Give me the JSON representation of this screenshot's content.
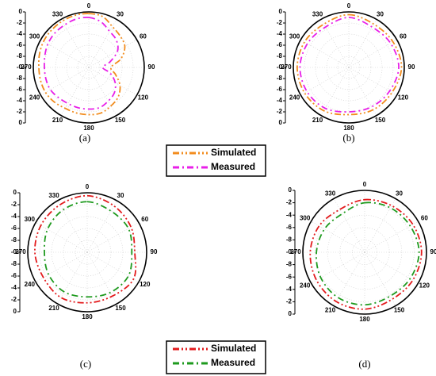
{
  "chart_data": [
    {
      "type": "polar",
      "caption": "(a)",
      "rlim": [
        -10,
        0
      ],
      "rticks": [
        0,
        -2,
        -4,
        -6,
        -8,
        {
          "value": -10,
          "label": "-0"
        }
      ],
      "angle_ticks": [
        0,
        30,
        60,
        90,
        120,
        150,
        180,
        210,
        240,
        270,
        300,
        330
      ],
      "x": [
        0,
        15,
        30,
        45,
        60,
        75,
        90,
        105,
        120,
        135,
        150,
        165,
        180,
        195,
        210,
        225,
        240,
        255,
        270,
        285,
        300,
        315,
        330,
        345
      ],
      "series": [
        {
          "name": "Simulated",
          "color": "#f28c1e",
          "values": [
            -0.3,
            -0.5,
            -1.5,
            -2,
            -2.5,
            -4,
            -6,
            -5,
            -3.5,
            -2.5,
            -2,
            -1.5,
            -1.5,
            -1.5,
            -1.5,
            -1.2,
            -1,
            -1,
            -1,
            -0.8,
            -0.6,
            -0.5,
            -0.4,
            -0.3
          ]
        },
        {
          "name": "Measured",
          "color": "#e81fe8",
          "values": [
            -1,
            -1.5,
            -2.5,
            -3,
            -4,
            -6,
            -7.5,
            -6,
            -4.5,
            -3.5,
            -3,
            -2.5,
            -2.5,
            -2.5,
            -2.5,
            -2.3,
            -2,
            -2,
            -2,
            -1.8,
            -1.5,
            -1.3,
            -1.2,
            -1
          ]
        }
      ]
    },
    {
      "type": "polar",
      "caption": "(b)",
      "rlim": [
        -10,
        0
      ],
      "rticks": [
        0,
        -2,
        -4,
        -6,
        -8,
        {
          "value": -10,
          "label": "-0"
        }
      ],
      "angle_ticks": [
        0,
        30,
        60,
        90,
        120,
        150,
        180,
        210,
        240,
        270,
        300,
        330
      ],
      "x": [
        0,
        30,
        60,
        90,
        120,
        150,
        180,
        210,
        240,
        270,
        300,
        330
      ],
      "series": [
        {
          "name": "Simulated",
          "color": "#f28c1e",
          "values": [
            -0.5,
            -1,
            -0.8,
            -0.5,
            -1,
            -1.2,
            -1.5,
            -1,
            -0.8,
            -0.7,
            -0.8,
            -1
          ]
        },
        {
          "name": "Measured",
          "color": "#e81fe8",
          "values": [
            -1,
            -1.6,
            -1.3,
            -1,
            -1.5,
            -1.8,
            -2,
            -1.5,
            -1.3,
            -1.2,
            -1.4,
            -1.6
          ]
        }
      ]
    },
    {
      "type": "polar",
      "caption": "(c)",
      "rlim": [
        -10,
        0
      ],
      "rticks": [
        0,
        -2,
        -4,
        -6,
        -8,
        {
          "value": -10,
          "label": "-0"
        }
      ],
      "angle_ticks": [
        0,
        30,
        60,
        90,
        120,
        150,
        180,
        210,
        240,
        270,
        300,
        330
      ],
      "x": [
        0,
        30,
        60,
        90,
        120,
        150,
        180,
        210,
        240,
        270,
        300,
        330
      ],
      "series": [
        {
          "name": "Simulated",
          "color": "#e31a1c",
          "values": [
            -0.5,
            -1,
            -1.5,
            -2,
            -1,
            -1.5,
            -1.5,
            -1.2,
            -1.5,
            -1.2,
            -1,
            -0.8
          ]
        },
        {
          "name": "Measured",
          "color": "#1e9a1e",
          "values": [
            -1.5,
            -2,
            -2,
            -2.5,
            -2,
            -2.2,
            -2.5,
            -2.3,
            -2.5,
            -2.8,
            -2.3,
            -1.8
          ]
        }
      ]
    },
    {
      "type": "polar",
      "caption": "(d)",
      "rlim": [
        -10,
        0
      ],
      "rticks": [
        0,
        -2,
        -4,
        -6,
        -8,
        {
          "value": -10,
          "label": "-0"
        }
      ],
      "angle_ticks": [
        0,
        30,
        60,
        90,
        120,
        150,
        180,
        210,
        240,
        270,
        300,
        330
      ],
      "x": [
        0,
        30,
        60,
        90,
        120,
        150,
        180,
        210,
        240,
        270,
        300,
        330
      ],
      "series": [
        {
          "name": "Simulated",
          "color": "#e31a1c",
          "values": [
            -1.5,
            -1.3,
            -1,
            -0.8,
            -1,
            -1.2,
            -0.8,
            -0.8,
            -1,
            -1.2,
            -1.5,
            -2
          ]
        },
        {
          "name": "Measured",
          "color": "#1e9a1e",
          "values": [
            -2,
            -1.7,
            -1.5,
            -1.2,
            -1.5,
            -1.8,
            -1.5,
            -1.5,
            -1.8,
            -2.2,
            -2.5,
            -2.8
          ]
        }
      ]
    }
  ]
}
